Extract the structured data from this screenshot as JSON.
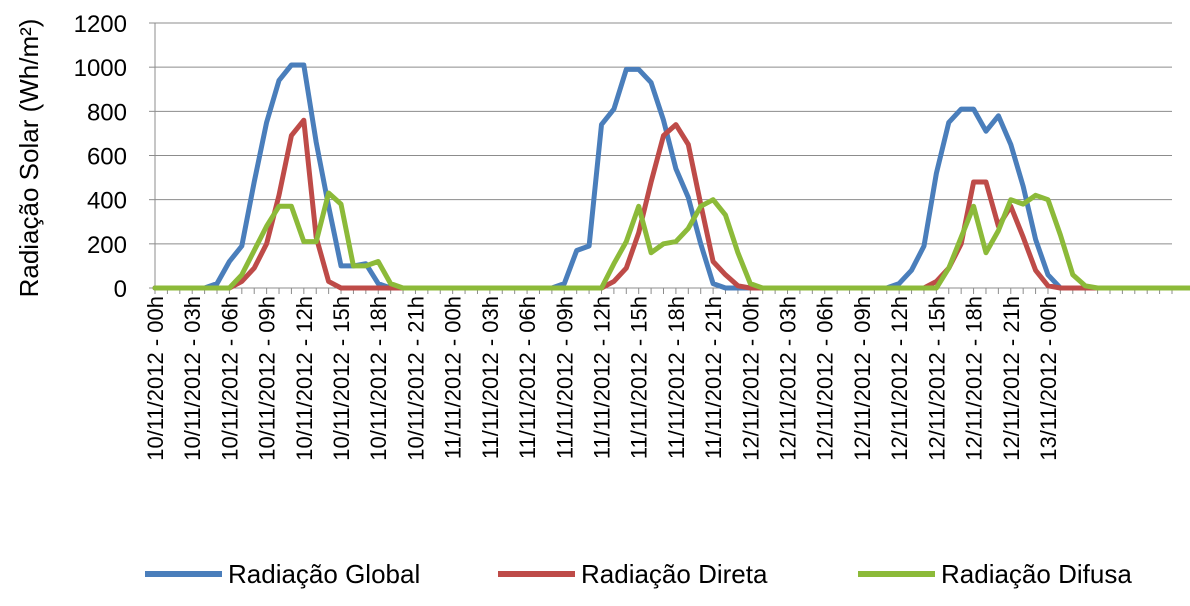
{
  "chart_data": {
    "type": "line",
    "ylabel": "Radiação Solar (Wh/m²)",
    "xlabel": "",
    "ylim": [
      0,
      1200
    ],
    "yticks": [
      0,
      200,
      400,
      600,
      800,
      1000,
      1200
    ],
    "grid": "horizontal",
    "legend": "bottom",
    "x_step_hours": 1,
    "x_tick_labels": [
      "10/11/2012 - 00h",
      "10/11/2012 - 03h",
      "10/11/2012 - 06h",
      "10/11/2012 - 09h",
      "10/11/2012 - 12h",
      "10/11/2012 - 15h",
      "10/11/2012 - 18h",
      "10/11/2012 - 21h",
      "11/11/2012 - 00h",
      "11/11/2012 - 03h",
      "11/11/2012 - 06h",
      "11/11/2012 - 09h",
      "11/11/2012 - 12h",
      "11/11/2012 - 15h",
      "11/11/2012 - 18h",
      "11/11/2012 - 21h",
      "12/11/2012 - 00h",
      "12/11/2012 - 03h",
      "12/11/2012 - 06h",
      "12/11/2012 - 09h",
      "12/11/2012 - 12h",
      "12/11/2012 - 15h",
      "12/11/2012 - 18h",
      "12/11/2012 - 21h",
      "13/11/2012 - 00h"
    ],
    "series": [
      {
        "name": "Radiação Global",
        "color": "#4a7ebb",
        "values": [
          0,
          0,
          0,
          0,
          0,
          20,
          120,
          190,
          480,
          750,
          940,
          1010,
          1010,
          660,
          370,
          100,
          100,
          110,
          20,
          0,
          0,
          0,
          0,
          0,
          0,
          0,
          0,
          0,
          0,
          0,
          0,
          0,
          0,
          20,
          170,
          190,
          740,
          810,
          990,
          990,
          930,
          760,
          540,
          410,
          200,
          20,
          0,
          0,
          0,
          0,
          0,
          0,
          0,
          0,
          0,
          0,
          0,
          0,
          0,
          0,
          20,
          80,
          190,
          520,
          750,
          810,
          810,
          710,
          780,
          650,
          460,
          220,
          60,
          0,
          0,
          0,
          0,
          0,
          0,
          0,
          0,
          0,
          0
        ]
      },
      {
        "name": "Radiação Direta",
        "color": "#be4b48",
        "values": [
          0,
          0,
          0,
          0,
          0,
          0,
          0,
          30,
          90,
          200,
          420,
          690,
          760,
          230,
          30,
          0,
          0,
          0,
          0,
          0,
          0,
          0,
          0,
          0,
          0,
          0,
          0,
          0,
          0,
          0,
          0,
          0,
          0,
          0,
          0,
          0,
          0,
          30,
          90,
          250,
          480,
          690,
          740,
          650,
          380,
          120,
          60,
          10,
          0,
          0,
          0,
          0,
          0,
          0,
          0,
          0,
          0,
          0,
          0,
          0,
          0,
          0,
          0,
          30,
          90,
          200,
          480,
          480,
          280,
          370,
          230,
          80,
          10,
          0,
          0,
          0,
          0,
          0,
          0,
          0,
          0,
          0,
          0,
          0,
          0,
          0
        ]
      },
      {
        "name": "Radiação Difusa",
        "color": "#8cba39",
        "values": [
          0,
          0,
          0,
          0,
          0,
          0,
          0,
          60,
          170,
          280,
          370,
          370,
          210,
          210,
          430,
          380,
          100,
          100,
          120,
          20,
          0,
          0,
          0,
          0,
          0,
          0,
          0,
          0,
          0,
          0,
          0,
          0,
          0,
          0,
          0,
          0,
          0,
          110,
          210,
          370,
          160,
          200,
          210,
          270,
          370,
          400,
          330,
          160,
          20,
          0,
          0,
          0,
          0,
          0,
          0,
          0,
          0,
          0,
          0,
          0,
          0,
          0,
          0,
          0,
          90,
          230,
          370,
          160,
          260,
          400,
          380,
          420,
          400,
          240,
          60,
          10,
          0,
          0,
          0,
          0,
          0,
          0,
          0,
          0,
          0
        ]
      }
    ]
  }
}
